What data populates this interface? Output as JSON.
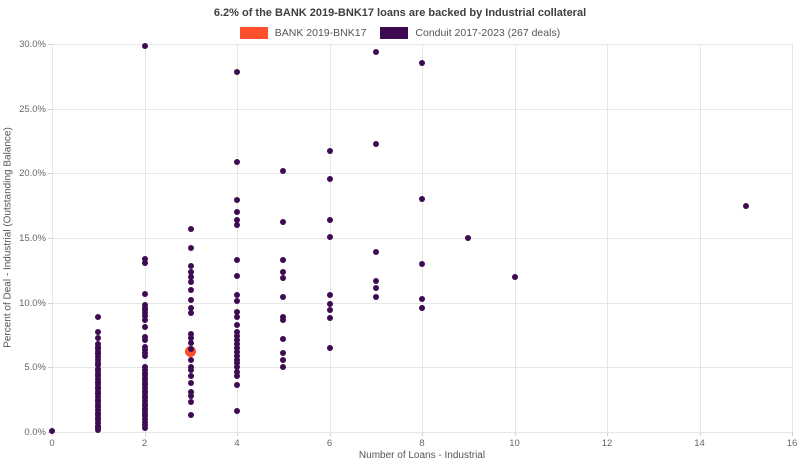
{
  "title": "6.2% of the BANK 2019-BNK17 loans are backed by Industrial collateral",
  "legend": [
    {
      "label": "BANK 2019-BNK17",
      "color": "#ff4e2c"
    },
    {
      "label": "Conduit 2017-2023 (267 deals)",
      "color": "#3e0b52"
    }
  ],
  "chart_data": {
    "type": "scatter",
    "title": "6.2% of the BANK 2019-BNK17 loans are backed by Industrial collateral",
    "xlabel": "Number of Loans - Industrial",
    "ylabel": "Percent of Deal - Industrial (Outstanding Balance)",
    "xlim": [
      0,
      16
    ],
    "ylim": [
      0,
      30
    ],
    "grid": true,
    "legend_position": "top-center",
    "x_ticks": [
      {
        "value": 0,
        "label": "0"
      },
      {
        "value": 2,
        "label": "2"
      },
      {
        "value": 4,
        "label": "4"
      },
      {
        "value": 6,
        "label": "6"
      },
      {
        "value": 8,
        "label": "8"
      },
      {
        "value": 10,
        "label": "10"
      },
      {
        "value": 12,
        "label": "12"
      },
      {
        "value": 14,
        "label": "14"
      },
      {
        "value": 16,
        "label": "16"
      }
    ],
    "y_ticks": [
      {
        "value": 0,
        "label": "0.0%"
      },
      {
        "value": 5,
        "label": "5.0%"
      },
      {
        "value": 10,
        "label": "10.0%"
      },
      {
        "value": 15,
        "label": "15.0%"
      },
      {
        "value": 20,
        "label": "20.0%"
      },
      {
        "value": 25,
        "label": "25.0%"
      },
      {
        "value": 30,
        "label": "30.0%"
      }
    ],
    "series": [
      {
        "name": "BANK 2019-BNK17",
        "color": "#ff4e2c",
        "marker_size": 11,
        "points": [
          [
            3,
            6.2
          ]
        ]
      },
      {
        "name": "Conduit 2017-2023 (267 deals)",
        "color": "#3e0b52",
        "marker_size": 6,
        "points": [
          [
            0,
            0.1
          ],
          [
            1,
            8.9
          ],
          [
            1,
            7.7
          ],
          [
            1,
            7.3
          ],
          [
            1,
            6.8
          ],
          [
            1,
            6.6
          ],
          [
            1,
            6.4
          ],
          [
            1,
            6.2
          ],
          [
            1,
            6.0
          ],
          [
            1,
            5.8
          ],
          [
            1,
            5.6
          ],
          [
            1,
            5.35
          ],
          [
            1,
            5.15
          ],
          [
            1,
            4.9
          ],
          [
            1,
            4.7
          ],
          [
            1,
            4.5
          ],
          [
            1,
            4.3
          ],
          [
            1,
            4.1
          ],
          [
            1,
            3.9
          ],
          [
            1,
            3.7
          ],
          [
            1,
            3.5
          ],
          [
            1,
            3.3
          ],
          [
            1,
            3.1
          ],
          [
            1,
            2.9
          ],
          [
            1,
            2.7
          ],
          [
            1,
            2.5
          ],
          [
            1,
            2.3
          ],
          [
            1,
            2.1
          ],
          [
            1,
            1.9
          ],
          [
            1,
            1.7
          ],
          [
            1,
            1.5
          ],
          [
            1,
            1.3
          ],
          [
            1,
            1.1
          ],
          [
            1,
            0.9
          ],
          [
            1,
            0.7
          ],
          [
            1,
            0.5
          ],
          [
            1,
            0.3
          ],
          [
            1,
            0.15
          ],
          [
            2,
            29.85
          ],
          [
            2,
            13.4
          ],
          [
            2,
            13.1
          ],
          [
            2,
            10.7
          ],
          [
            2,
            9.8
          ],
          [
            2,
            9.6
          ],
          [
            2,
            9.4
          ],
          [
            2,
            9.2
          ],
          [
            2,
            9.0
          ],
          [
            2,
            8.65
          ],
          [
            2,
            8.1
          ],
          [
            2,
            7.35
          ],
          [
            2,
            7.15
          ],
          [
            2,
            6.6
          ],
          [
            2,
            6.35
          ],
          [
            2,
            6.1
          ],
          [
            2,
            5.85
          ],
          [
            2,
            5.0
          ],
          [
            2,
            4.8
          ],
          [
            2,
            4.6
          ],
          [
            2,
            4.4
          ],
          [
            2,
            4.2
          ],
          [
            2,
            4.0
          ],
          [
            2,
            3.8
          ],
          [
            2,
            3.6
          ],
          [
            2,
            3.4
          ],
          [
            2,
            3.2
          ],
          [
            2,
            3.0
          ],
          [
            2,
            2.8
          ],
          [
            2,
            2.6
          ],
          [
            2,
            2.4
          ],
          [
            2,
            2.2
          ],
          [
            2,
            2.0
          ],
          [
            2,
            1.8
          ],
          [
            2,
            1.6
          ],
          [
            2,
            1.4
          ],
          [
            2,
            1.2
          ],
          [
            2,
            1.0
          ],
          [
            2,
            0.8
          ],
          [
            2,
            0.55
          ],
          [
            2,
            0.3
          ],
          [
            3,
            15.7
          ],
          [
            3,
            14.2
          ],
          [
            3,
            12.8
          ],
          [
            3,
            12.4
          ],
          [
            3,
            12.0
          ],
          [
            3,
            11.6
          ],
          [
            3,
            11.0
          ],
          [
            3,
            10.2
          ],
          [
            3,
            9.6
          ],
          [
            3,
            9.2
          ],
          [
            3,
            7.6
          ],
          [
            3,
            7.3
          ],
          [
            3,
            6.85
          ],
          [
            3,
            6.4
          ],
          [
            3,
            5.6
          ],
          [
            3,
            5.05
          ],
          [
            3,
            4.8
          ],
          [
            3,
            4.3
          ],
          [
            3,
            3.8
          ],
          [
            3,
            3.1
          ],
          [
            3,
            2.8
          ],
          [
            3,
            2.3
          ],
          [
            3,
            1.3
          ],
          [
            4,
            27.8
          ],
          [
            4,
            20.9
          ],
          [
            4,
            17.9
          ],
          [
            4,
            17.0
          ],
          [
            4,
            16.4
          ],
          [
            4,
            16.0
          ],
          [
            4,
            13.3
          ],
          [
            4,
            12.1
          ],
          [
            4,
            10.6
          ],
          [
            4,
            10.1
          ],
          [
            4,
            9.3
          ],
          [
            4,
            8.9
          ],
          [
            4,
            8.3
          ],
          [
            4,
            7.7
          ],
          [
            4,
            7.4
          ],
          [
            4,
            7.1
          ],
          [
            4,
            6.8
          ],
          [
            4,
            6.5
          ],
          [
            4,
            6.2
          ],
          [
            4,
            5.9
          ],
          [
            4,
            5.6
          ],
          [
            4,
            5.3
          ],
          [
            4,
            5.0
          ],
          [
            4,
            4.65
          ],
          [
            4,
            4.3
          ],
          [
            4,
            3.6
          ],
          [
            4,
            1.6
          ],
          [
            5,
            20.2
          ],
          [
            5,
            16.2
          ],
          [
            5,
            13.3
          ],
          [
            5,
            12.4
          ],
          [
            5,
            11.9
          ],
          [
            5,
            10.45
          ],
          [
            5,
            8.9
          ],
          [
            5,
            8.65
          ],
          [
            5,
            7.2
          ],
          [
            5,
            6.1
          ],
          [
            5,
            5.6
          ],
          [
            5,
            5.0
          ],
          [
            6,
            21.7
          ],
          [
            6,
            19.6
          ],
          [
            6,
            16.4
          ],
          [
            6,
            15.1
          ],
          [
            6,
            10.6
          ],
          [
            6,
            9.9
          ],
          [
            6,
            9.4
          ],
          [
            6,
            8.8
          ],
          [
            6,
            6.5
          ],
          [
            7,
            29.4
          ],
          [
            7,
            22.3
          ],
          [
            7,
            13.9
          ],
          [
            7,
            11.7
          ],
          [
            7,
            11.1
          ],
          [
            7,
            10.45
          ],
          [
            8,
            28.5
          ],
          [
            8,
            18.0
          ],
          [
            8,
            13.0
          ],
          [
            8,
            10.3
          ],
          [
            8,
            9.55
          ],
          [
            9,
            15.0
          ],
          [
            10,
            12.0
          ],
          [
            15,
            17.5
          ]
        ]
      }
    ]
  }
}
